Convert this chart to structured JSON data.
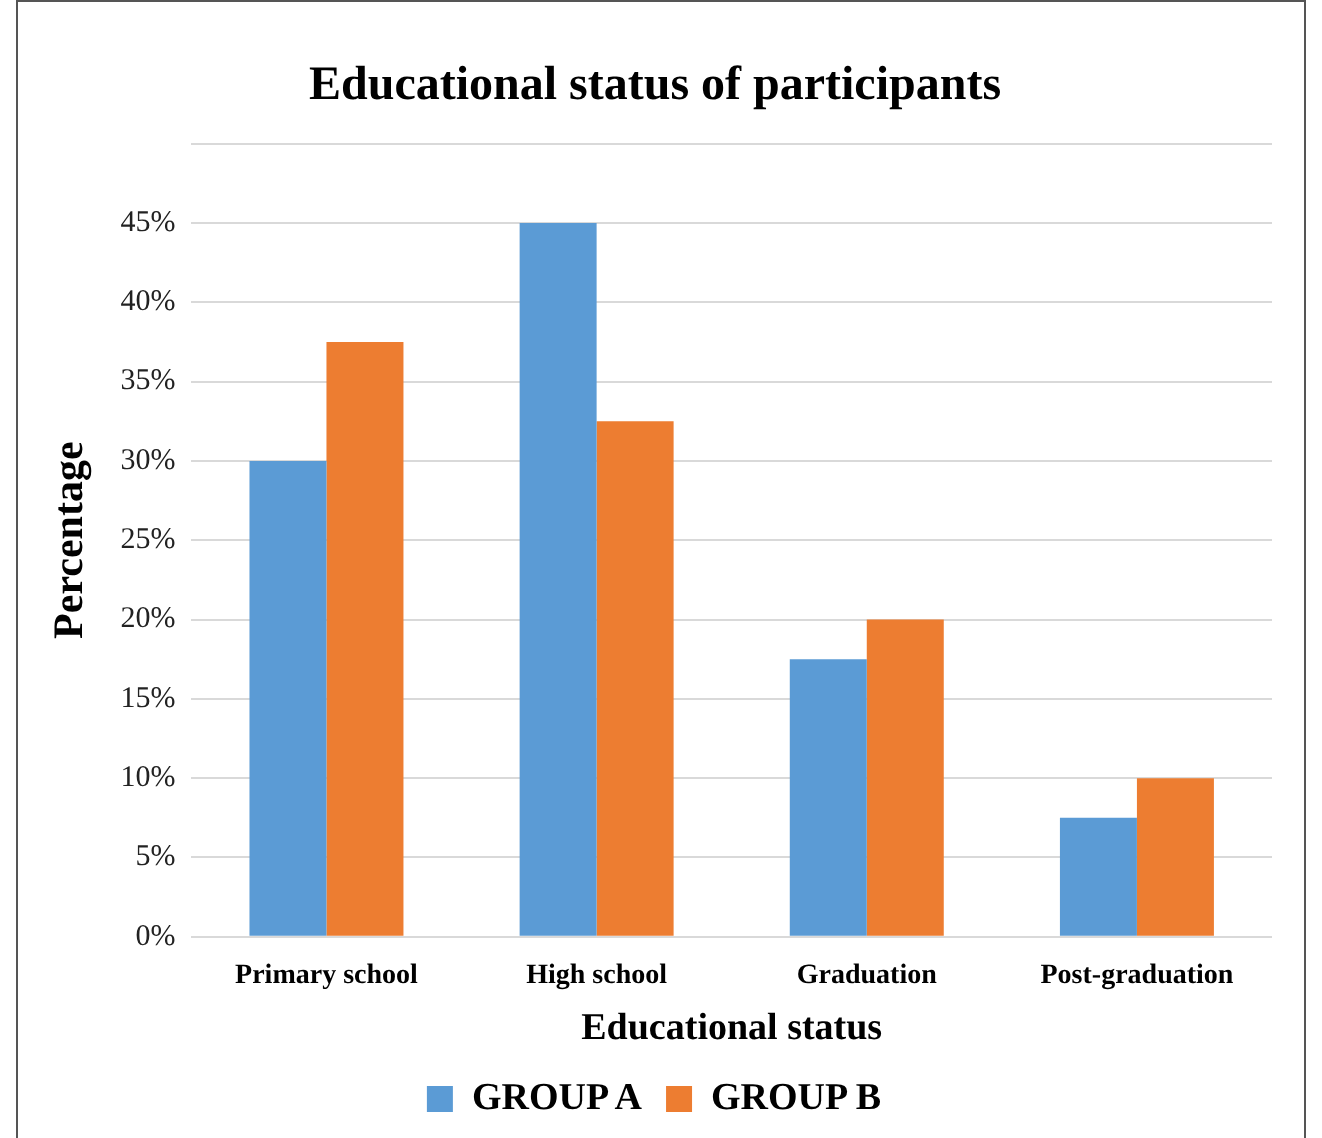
{
  "chart_data": {
    "type": "bar",
    "title": "Educational status of participants",
    "xlabel": "Educational status",
    "ylabel": "Percentage",
    "categories": [
      "Primary school",
      "High school",
      "Graduation",
      "Post-graduation"
    ],
    "series": [
      {
        "name": "GROUP A",
        "color": "#5b9bd5",
        "values": [
          30,
          45,
          17.5,
          7.5
        ]
      },
      {
        "name": "GROUP B",
        "color": "#ed7d31",
        "values": [
          37.5,
          32.5,
          20,
          10
        ]
      }
    ],
    "ylim": [
      0,
      50
    ],
    "yticks": [
      {
        "value": 0,
        "label": "0%"
      },
      {
        "value": 5,
        "label": "5%"
      },
      {
        "value": 10,
        "label": "10%"
      },
      {
        "value": 15,
        "label": "15%"
      },
      {
        "value": 20,
        "label": "20%"
      },
      {
        "value": 25,
        "label": "25%"
      },
      {
        "value": 30,
        "label": "30%"
      },
      {
        "value": 35,
        "label": "35%"
      },
      {
        "value": 40,
        "label": "40%"
      },
      {
        "value": 45,
        "label": "45%"
      },
      {
        "value": 50,
        "label": null
      }
    ],
    "grid": "y",
    "legend": "bottom"
  }
}
